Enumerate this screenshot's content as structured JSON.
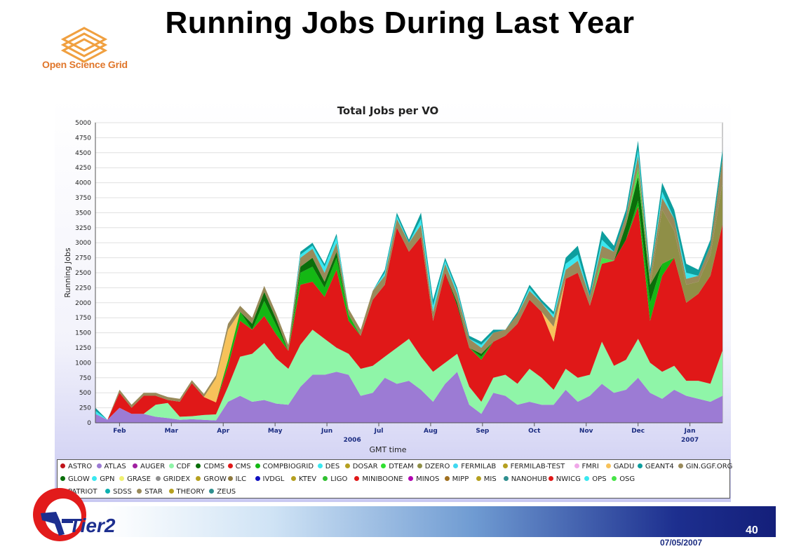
{
  "slide": {
    "title": "Running Jobs During Last Year",
    "org_logo_text": "Open Science Grid",
    "footer_logo_text": "Tier2",
    "page_number": "40",
    "date": "07/05/2007"
  },
  "chart_data": {
    "type": "area",
    "stacked": true,
    "title": "Total Jobs per VO",
    "xlabel": "GMT time",
    "ylabel": "Running Jobs",
    "ylim": [
      0,
      5000
    ],
    "yticks": [
      0,
      250,
      500,
      750,
      1000,
      1250,
      1500,
      1750,
      2000,
      2250,
      2500,
      2750,
      3000,
      3250,
      3500,
      3750,
      4000,
      4250,
      4500,
      4750,
      5000
    ],
    "xlim": [
      0,
      52
    ],
    "xticks": [
      {
        "x": 2,
        "label": "Feb"
      },
      {
        "x": 6.3,
        "label": "Mar"
      },
      {
        "x": 10.6,
        "label": "Apr"
      },
      {
        "x": 14.9,
        "label": "May"
      },
      {
        "x": 19.2,
        "label": "Jun"
      },
      {
        "x": 23.5,
        "label": "Jul"
      },
      {
        "x": 27.8,
        "label": "Aug"
      },
      {
        "x": 32.1,
        "label": "Sep"
      },
      {
        "x": 36.4,
        "label": "Oct"
      },
      {
        "x": 40.7,
        "label": "Nov"
      },
      {
        "x": 45,
        "label": "Dec"
      },
      {
        "x": 49.3,
        "label": "Jan"
      }
    ],
    "year_labels": [
      {
        "x": 21.3,
        "label": "2006"
      },
      {
        "x": 49.3,
        "label": "2007"
      }
    ],
    "x": [
      0,
      1,
      2,
      3,
      4,
      5,
      6,
      7,
      8,
      9,
      10,
      11,
      12,
      13,
      14,
      15,
      16,
      17,
      18,
      19,
      20,
      21,
      22,
      23,
      24,
      25,
      26,
      27,
      28,
      29,
      30,
      31,
      32,
      33,
      34,
      35,
      36,
      37,
      38,
      39,
      40,
      41,
      42,
      43,
      44,
      45,
      46,
      47,
      48,
      49,
      50,
      51,
      52
    ],
    "grid": true,
    "legend_position": "bottom",
    "series": [
      {
        "name": "ATLAS",
        "color": "#9c7bd4",
        "values": [
          150,
          50,
          250,
          150,
          150,
          100,
          80,
          50,
          60,
          50,
          40,
          350,
          450,
          350,
          380,
          320,
          300,
          600,
          800,
          800,
          850,
          800,
          450,
          500,
          750,
          650,
          700,
          550,
          350,
          650,
          850,
          300,
          150,
          500,
          450,
          300,
          350,
          300,
          300,
          550,
          350,
          450,
          650,
          500,
          550,
          750,
          500,
          400,
          550,
          450,
          400,
          350,
          450
        ]
      },
      {
        "name": "CDF",
        "color": "#8ff5a8",
        "values": [
          0,
          0,
          0,
          0,
          0,
          200,
          250,
          50,
          50,
          80,
          100,
          250,
          650,
          800,
          950,
          750,
          600,
          700,
          750,
          600,
          400,
          350,
          450,
          450,
          350,
          600,
          700,
          550,
          500,
          350,
          300,
          300,
          200,
          250,
          350,
          350,
          550,
          450,
          250,
          350,
          400,
          350,
          700,
          450,
          500,
          650,
          500,
          450,
          400,
          250,
          300,
          300,
          750
        ]
      },
      {
        "name": "CMS",
        "color": "#e01818",
        "values": [
          0,
          0,
          250,
          100,
          300,
          150,
          50,
          250,
          550,
          300,
          200,
          350,
          600,
          400,
          450,
          400,
          300,
          1000,
          800,
          700,
          1300,
          550,
          550,
          1100,
          1200,
          2000,
          1450,
          2000,
          850,
          1500,
          800,
          650,
          700,
          600,
          650,
          1000,
          1150,
          1100,
          800,
          1500,
          1750,
          1150,
          1300,
          1750,
          2000,
          2200,
          700,
          1600,
          1800,
          1300,
          1450,
          1800,
          2100
        ]
      },
      {
        "name": "COMPBIOGRID",
        "color": "#14b814",
        "values": [
          0,
          0,
          0,
          0,
          0,
          0,
          0,
          0,
          0,
          0,
          0,
          100,
          150,
          0,
          250,
          150,
          0,
          200,
          250,
          150,
          200,
          100,
          0,
          0,
          0,
          0,
          0,
          0,
          0,
          0,
          0,
          0,
          50,
          0,
          0,
          0,
          0,
          0,
          0,
          0,
          0,
          0,
          0,
          0,
          0,
          100,
          300,
          200,
          0,
          0,
          0,
          0,
          0
        ]
      },
      {
        "name": "CDMS",
        "color": "#0a6e0a",
        "values": [
          0,
          0,
          0,
          0,
          0,
          0,
          0,
          0,
          0,
          0,
          0,
          0,
          0,
          100,
          150,
          100,
          0,
          100,
          150,
          100,
          100,
          0,
          0,
          0,
          0,
          0,
          0,
          0,
          0,
          0,
          50,
          0,
          50,
          0,
          0,
          0,
          0,
          0,
          0,
          0,
          0,
          0,
          0,
          0,
          250,
          400,
          300,
          0,
          0,
          0,
          0,
          0,
          0
        ]
      },
      {
        "name": "GADU",
        "color": "#f7c25a",
        "values": [
          0,
          0,
          0,
          0,
          0,
          0,
          0,
          0,
          0,
          0,
          400,
          500,
          0,
          0,
          0,
          0,
          0,
          0,
          0,
          0,
          0,
          0,
          0,
          0,
          0,
          0,
          0,
          0,
          0,
          0,
          0,
          0,
          0,
          0,
          0,
          0,
          0,
          0,
          250,
          0,
          0,
          0,
          0,
          0,
          0,
          0,
          0,
          0,
          0,
          0,
          0,
          0,
          0
        ]
      },
      {
        "name": "DZERO",
        "color": "#8f8f47",
        "values": [
          0,
          0,
          0,
          0,
          0,
          0,
          0,
          0,
          0,
          0,
          0,
          0,
          0,
          0,
          0,
          0,
          0,
          0,
          0,
          0,
          0,
          0,
          0,
          0,
          0,
          0,
          0,
          0,
          0,
          0,
          0,
          0,
          0,
          0,
          0,
          0,
          0,
          0,
          0,
          0,
          0,
          0,
          0,
          0,
          0,
          0,
          0,
          900,
          450,
          300,
          200,
          350,
          700
        ]
      },
      {
        "name": "OSG",
        "color": "#47e447",
        "values": [
          0,
          0,
          0,
          0,
          0,
          0,
          0,
          0,
          0,
          0,
          0,
          0,
          0,
          0,
          0,
          0,
          0,
          0,
          0,
          0,
          0,
          0,
          0,
          0,
          0,
          0,
          0,
          0,
          0,
          0,
          0,
          0,
          0,
          0,
          0,
          0,
          0,
          0,
          0,
          0,
          0,
          0,
          100,
          0,
          0,
          150,
          0,
          0,
          0,
          0,
          0,
          0,
          0
        ]
      },
      {
        "name": "STAR",
        "color": "#998a5a",
        "values": [
          0,
          0,
          50,
          50,
          50,
          50,
          50,
          50,
          50,
          50,
          50,
          100,
          100,
          100,
          100,
          100,
          100,
          150,
          150,
          150,
          150,
          100,
          100,
          150,
          150,
          150,
          150,
          200,
          150,
          150,
          150,
          150,
          100,
          150,
          100,
          150,
          150,
          150,
          150,
          150,
          200,
          150,
          200,
          150,
          150,
          200,
          150,
          200,
          200,
          100,
          100,
          150,
          400
        ]
      },
      {
        "name": "OPS",
        "color": "#3ae8f0",
        "values": [
          50,
          0,
          0,
          0,
          0,
          0,
          0,
          0,
          0,
          0,
          0,
          0,
          0,
          0,
          0,
          0,
          0,
          50,
          50,
          100,
          100,
          0,
          0,
          0,
          50,
          50,
          0,
          100,
          100,
          50,
          50,
          0,
          50,
          0,
          0,
          0,
          50,
          0,
          50,
          100,
          100,
          0,
          100,
          0,
          0,
          100,
          0,
          100,
          0,
          100,
          0,
          0,
          0
        ]
      },
      {
        "name": "GEANT4",
        "color": "#0d9e9e",
        "values": [
          50,
          0,
          0,
          0,
          0,
          0,
          0,
          0,
          0,
          0,
          0,
          0,
          0,
          0,
          0,
          0,
          0,
          50,
          50,
          50,
          50,
          0,
          0,
          0,
          50,
          50,
          50,
          100,
          100,
          50,
          50,
          50,
          50,
          50,
          0,
          50,
          50,
          50,
          50,
          100,
          150,
          100,
          150,
          100,
          100,
          150,
          100,
          150,
          150,
          150,
          100,
          100,
          150
        ]
      }
    ]
  },
  "legend": [
    {
      "name": "ASTRO",
      "color": "#c0141a"
    },
    {
      "name": "ATLAS",
      "color": "#9c7bd4"
    },
    {
      "name": "AUGER",
      "color": "#a020a0"
    },
    {
      "name": "CDF",
      "color": "#8ff5a8"
    },
    {
      "name": "CDMS",
      "color": "#0a6e0a"
    },
    {
      "name": "CMS",
      "color": "#e01818"
    },
    {
      "name": "COMPBIOGRID",
      "color": "#14b814"
    },
    {
      "name": "DES",
      "color": "#3ae8f0"
    },
    {
      "name": "DOSAR",
      "color": "#b5a020"
    },
    {
      "name": "DTEAM",
      "color": "#30e030"
    },
    {
      "name": "DZERO",
      "color": "#8f8f47"
    },
    {
      "name": "FERMILAB",
      "color": "#40d8f0"
    },
    {
      "name": "FERMILAB-TEST",
      "color": "#b5a020"
    },
    {
      "name": "FMRI",
      "color": "#f0a8e8"
    },
    {
      "name": "GADU",
      "color": "#f7c25a"
    },
    {
      "name": "GEANT4",
      "color": "#0d9e9e"
    },
    {
      "name": "GIN.GGF.ORG",
      "color": "#998a5a"
    },
    {
      "name": "GLOW",
      "color": "#0a6e0a"
    },
    {
      "name": "GPN",
      "color": "#3ae8f0"
    },
    {
      "name": "GRASE",
      "color": "#f0f070"
    },
    {
      "name": "GRIDEX",
      "color": "#8f8f8f"
    },
    {
      "name": "GROW",
      "color": "#b5a020"
    },
    {
      "name": "ILC",
      "color": "#8f7a40"
    },
    {
      "name": "IVDGL",
      "color": "#1010c0"
    },
    {
      "name": "KTEV",
      "color": "#b5a020"
    },
    {
      "name": "LIGO",
      "color": "#30c030"
    },
    {
      "name": "MINIBOONE",
      "color": "#e01818"
    },
    {
      "name": "MINOS",
      "color": "#b000b0"
    },
    {
      "name": "MIPP",
      "color": "#a07020"
    },
    {
      "name": "MIS",
      "color": "#b5a020"
    },
    {
      "name": "NANOHUB",
      "color": "#2f8f8f"
    },
    {
      "name": "NWICG",
      "color": "#e01818"
    },
    {
      "name": "OPS",
      "color": "#3ae8f0"
    },
    {
      "name": "OSG",
      "color": "#47e447"
    },
    {
      "name": "PATRIOT",
      "color": "#f7c25a"
    },
    {
      "name": "SDSS",
      "color": "#0db0b0"
    },
    {
      "name": "STAR",
      "color": "#998a5a"
    },
    {
      "name": "THEORY",
      "color": "#b5a020"
    },
    {
      "name": "ZEUS",
      "color": "#2f8f8f"
    }
  ]
}
